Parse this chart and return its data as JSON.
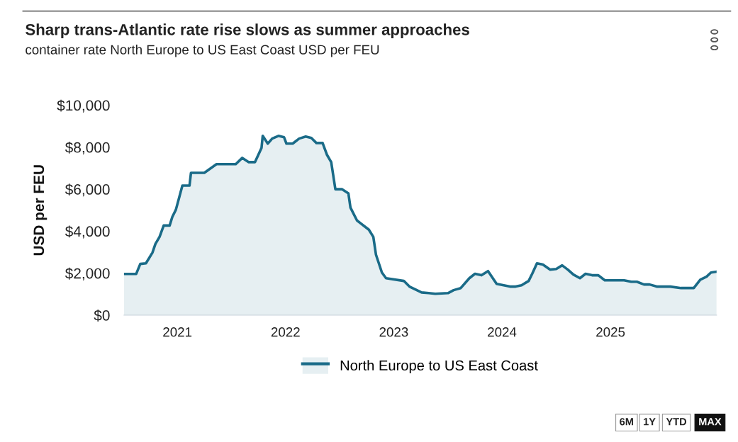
{
  "chart_data": {
    "type": "area",
    "title": "Sharp trans-Atlantic rate rise slows as summer approaches",
    "subtitle": "container rate North Europe to US East Coast USD per FEU",
    "ylabel": "USD per FEU",
    "x": [
      "2020-07-05",
      "2020-08-15",
      "2020-08-29",
      "2020-09-17",
      "2020-10-09",
      "2020-10-19",
      "2020-11-02",
      "2020-11-16",
      "2020-12-06",
      "2020-12-15",
      "2020-12-27",
      "2021-01-18",
      "2021-02-11",
      "2021-02-16",
      "2021-04-02",
      "2021-05-13",
      "2021-07-17",
      "2021-08-08",
      "2021-08-29",
      "2021-09-20",
      "2021-10-12",
      "2021-10-16",
      "2021-11-02",
      "2021-11-17",
      "2021-12-08",
      "2021-12-27",
      "2022-01-04",
      "2022-01-25",
      "2022-02-16",
      "2022-03-10",
      "2022-03-29",
      "2022-04-15",
      "2022-05-06",
      "2022-05-21",
      "2022-06-04",
      "2022-06-18",
      "2022-07-10",
      "2022-08-01",
      "2022-08-08",
      "2022-08-30",
      "2022-10-09",
      "2022-10-24",
      "2022-11-02",
      "2022-11-22",
      "2022-12-06",
      "2023-02-04",
      "2023-02-23",
      "2023-04-05",
      "2023-04-29",
      "2023-05-21",
      "2023-07-03",
      "2023-07-22",
      "2023-08-15",
      "2023-09-13",
      "2023-10-02",
      "2023-10-24",
      "2023-11-15",
      "2023-12-14",
      "2024-01-28",
      "2024-02-16",
      "2024-03-07",
      "2024-03-31",
      "2024-04-12",
      "2024-04-28",
      "2024-05-18",
      "2024-06-11",
      "2024-07-02",
      "2024-07-22",
      "2024-08-10",
      "2024-08-29",
      "2024-09-20",
      "2024-10-09",
      "2024-10-31",
      "2024-11-21",
      "2024-12-13",
      "2025-02-16",
      "2025-03-12",
      "2025-03-31",
      "2025-04-24",
      "2025-05-13",
      "2025-06-06",
      "2025-07-22",
      "2025-08-27",
      "2025-10-09",
      "2025-10-31",
      "2025-11-21",
      "2025-12-06",
      "2025-12-25"
    ],
    "series": [
      {
        "name": "North Europe to US East Coast",
        "color": "#1a6b88",
        "values": [
          1960,
          1960,
          2440,
          2470,
          2980,
          3390,
          3730,
          4270,
          4270,
          4680,
          5020,
          6170,
          6170,
          6780,
          6780,
          7190,
          7190,
          7490,
          7290,
          7290,
          7970,
          8540,
          8170,
          8410,
          8540,
          8470,
          8170,
          8170,
          8410,
          8510,
          8440,
          8200,
          8200,
          7630,
          7290,
          6000,
          6000,
          5800,
          5120,
          4510,
          4070,
          3730,
          2880,
          2030,
          1760,
          1630,
          1360,
          1080,
          1050,
          1020,
          1050,
          1190,
          1290,
          1760,
          1970,
          1900,
          2100,
          1490,
          1360,
          1360,
          1420,
          1630,
          1970,
          2470,
          2410,
          2170,
          2200,
          2370,
          2170,
          1930,
          1760,
          1970,
          1900,
          1900,
          1660,
          1660,
          1590,
          1590,
          1460,
          1460,
          1360,
          1360,
          1290,
          1290,
          1690,
          1830,
          2030,
          2070
        ]
      }
    ],
    "xlim": [
      "2020-07-05",
      "2025-12-25"
    ],
    "xticks": [
      {
        "value": "2021-01-01",
        "label": "2021"
      },
      {
        "value": "2022-01-01",
        "label": "2022"
      },
      {
        "value": "2023-01-01",
        "label": "2023"
      },
      {
        "value": "2024-01-01",
        "label": "2024"
      },
      {
        "value": "2025-01-01",
        "label": "2025"
      }
    ],
    "ylim": [
      0,
      10000
    ],
    "yticks": [
      {
        "value": 0,
        "label": "$0"
      },
      {
        "value": 2000,
        "label": "$2,000"
      },
      {
        "value": 4000,
        "label": "$4,000"
      },
      {
        "value": 6000,
        "label": "$6,000"
      },
      {
        "value": 8000,
        "label": "$8,000"
      },
      {
        "value": 10000,
        "label": "$10,000"
      }
    ],
    "grid": false,
    "legend": "bottom",
    "marker": "none",
    "line_style": "solid",
    "annotations": [
      "6M",
      "1Y",
      "YTD",
      "MAX"
    ]
  }
}
